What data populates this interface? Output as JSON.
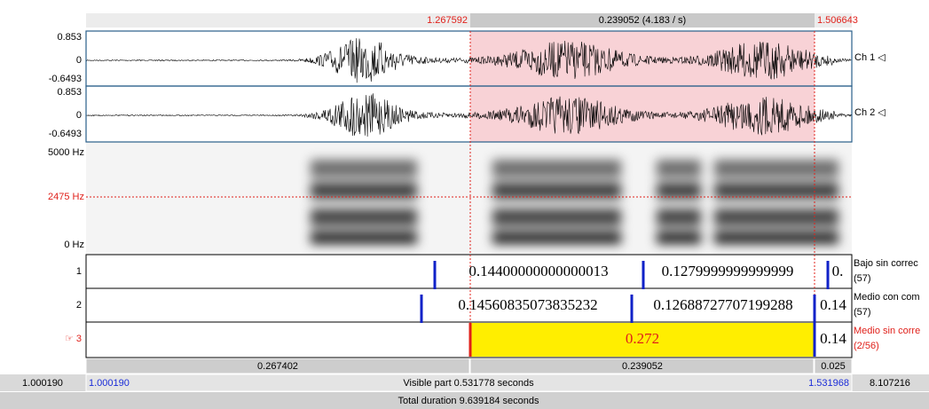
{
  "selection_bar": {
    "start": "1.267592",
    "duration": "0.239052 (4.183 / s)",
    "end": "1.506643"
  },
  "channels": [
    {
      "max": "0.853",
      "zero": "0",
      "min": "-0.6493",
      "name": "Ch 1 ◁"
    },
    {
      "max": "0.853",
      "zero": "0",
      "min": "-0.6493",
      "name": "Ch 2 ◁"
    }
  ],
  "spectrogram": {
    "top": "5000 Hz",
    "cursor": "2475 Hz",
    "bottom": "0 Hz"
  },
  "tiers": [
    {
      "number": "1",
      "intervals": [
        "0.14400000000000013",
        "0.1279999999999999",
        "0."
      ],
      "name": "Bajo sin correc",
      "count": "(57)"
    },
    {
      "number": "2",
      "intervals": [
        "0.14560835073835232",
        "0.12688727707199288",
        "0.14"
      ],
      "name": "Medio con com",
      "count": "(57)"
    },
    {
      "number": "☞ 3",
      "intervals": [
        "0.272",
        "0.14"
      ],
      "name": "Medio sin corre",
      "count": "(2/56)"
    }
  ],
  "duration_bar": [
    "0.267402",
    "0.239052",
    "0.025"
  ],
  "visible_bar": {
    "window_start": "1.000190",
    "start": "1.000190",
    "visible": "Visible part 0.531778 seconds",
    "end": "1.531968",
    "remaining": "8.107216"
  },
  "total": "Total duration 9.639184 seconds"
}
